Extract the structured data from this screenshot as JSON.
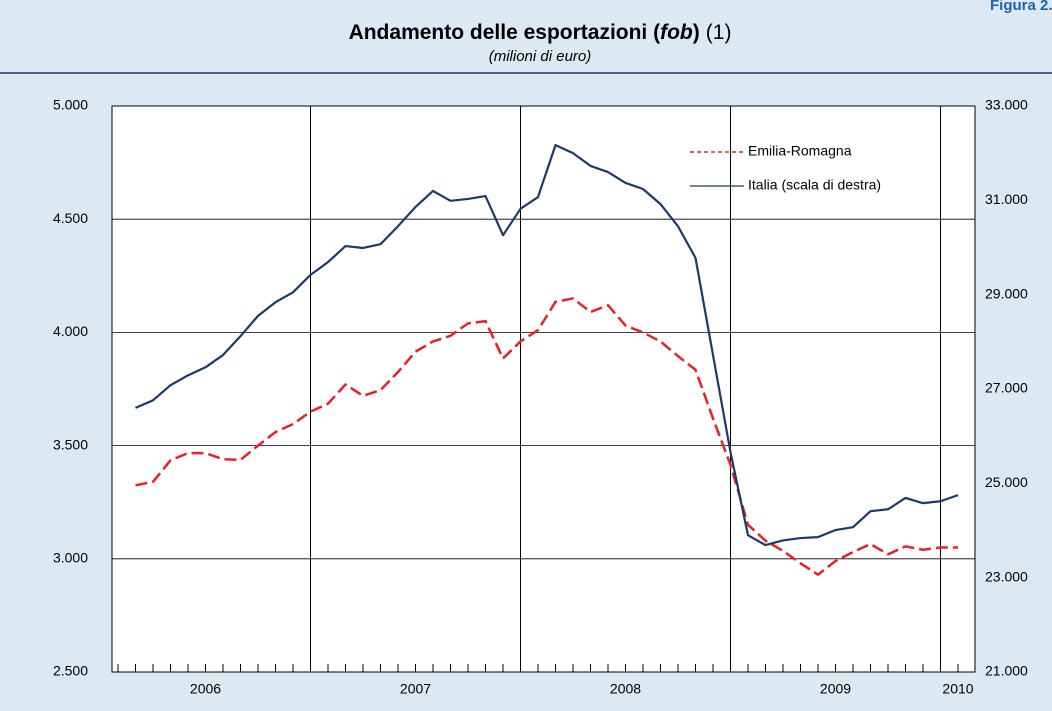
{
  "figure_label": "Figura 2.",
  "chart_data": {
    "type": "line",
    "title": [
      "Andamento delle esportazioni (",
      "fob",
      ")",
      "(1)"
    ],
    "subtitle": "(milioni di euro)",
    "categories": [
      null,
      null,
      null,
      null,
      null,
      "2006",
      null,
      null,
      null,
      null,
      null,
      null,
      null,
      null,
      null,
      null,
      null,
      "2007",
      null,
      null,
      null,
      null,
      null,
      null,
      null,
      null,
      null,
      null,
      null,
      "2008",
      null,
      null,
      null,
      null,
      null,
      null,
      null,
      null,
      null,
      null,
      null,
      "2009",
      null,
      null,
      null,
      null,
      null,
      null,
      "2010"
    ],
    "series": [
      {
        "name": "Emilia-Romagna",
        "color": "#e8202a",
        "dash": true,
        "values": [
          null,
          3325,
          3340,
          3435,
          3467,
          3467,
          3440,
          3437,
          3500,
          3560,
          3595,
          3650,
          3685,
          3770,
          3720,
          3745,
          3825,
          3915,
          3960,
          3985,
          4040,
          4050,
          3885,
          3960,
          4010,
          4135,
          4150,
          4090,
          4120,
          4030,
          4000,
          3960,
          3895,
          3835,
          3620,
          3415,
          3150,
          3080,
          3035,
          2980,
          2930,
          2990,
          3030,
          3065,
          3020,
          3055,
          3040,
          3050,
          3050
        ]
      },
      {
        "name": "Italia (scala di destra)",
        "color": "#1b3a6b",
        "axis": "y2",
        "values": [
          null,
          26600,
          26760,
          27080,
          27290,
          27460,
          27720,
          28120,
          28550,
          28840,
          29050,
          29420,
          29690,
          30030,
          29990,
          30070,
          30450,
          30860,
          31200,
          30990,
          31030,
          31090,
          30260,
          30820,
          31070,
          32170,
          32000,
          31730,
          31600,
          31370,
          31240,
          30920,
          30450,
          29780,
          27720,
          25660,
          23900,
          23690,
          23790,
          23840,
          23860,
          24010,
          24070,
          24410,
          24450,
          24690,
          24580,
          24620,
          24750
        ]
      }
    ],
    "ylim": [
      2500,
      5000
    ],
    "yticks": [
      {
        "value": 2500,
        "label": "2.500"
      },
      {
        "value": 3000,
        "label": "3.000"
      },
      {
        "value": 3500,
        "label": "3.500"
      },
      {
        "value": 4000,
        "label": "4.000"
      },
      {
        "value": 4500,
        "label": "4.500"
      },
      {
        "value": 5000,
        "label": "5.000"
      }
    ],
    "y2lim": [
      21000,
      33000
    ],
    "y2ticks": [
      {
        "value": 21000,
        "label": "21.000"
      },
      {
        "value": 23000,
        "label": "23.000"
      },
      {
        "value": 25000,
        "label": "25.000"
      },
      {
        "value": 27000,
        "label": "27.000"
      },
      {
        "value": 29000,
        "label": "29.000"
      },
      {
        "value": 31000,
        "label": "31.000"
      },
      {
        "value": 33000,
        "label": "33.000"
      }
    ],
    "grid": true,
    "legend": "top-right"
  }
}
